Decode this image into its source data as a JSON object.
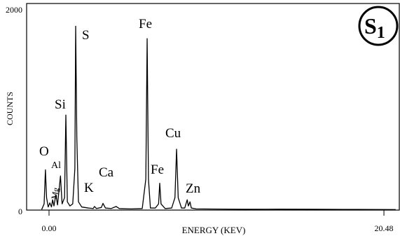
{
  "chart_data": {
    "type": "line",
    "xlabel": "ENERGY (KEV)",
    "ylabel": "COUNTS",
    "color": "#000000",
    "xlim": [
      -1.37,
      21.42
    ],
    "ylim": [
      0,
      2000
    ],
    "xticks": [
      {
        "value": 0,
        "label": "0.00"
      },
      {
        "value": 20.48,
        "label": "20.48"
      }
    ],
    "yticks": [
      0,
      2000
    ],
    "x": [
      -0.45,
      -0.3,
      -0.22,
      -0.15,
      -0.05,
      0.05,
      0.15,
      0.22,
      0.3,
      0.42,
      0.52,
      0.7,
      0.8,
      0.95,
      1.03,
      1.12,
      1.28,
      1.45,
      1.58,
      1.63,
      1.7,
      1.8,
      2.0,
      2.4,
      2.7,
      2.78,
      2.9,
      3.2,
      3.3,
      3.45,
      3.8,
      4.1,
      4.3,
      5.0,
      5.7,
      5.92,
      6.0,
      6.08,
      6.2,
      6.5,
      6.7,
      6.77,
      6.85,
      7.1,
      7.5,
      7.7,
      7.8,
      7.9,
      8.1,
      8.3,
      8.45,
      8.52,
      8.62,
      8.7,
      9.0,
      10,
      12,
      14,
      16,
      18,
      20,
      21.2
    ],
    "values": [
      5,
      60,
      390,
      120,
      30,
      70,
      30,
      100,
      40,
      150,
      50,
      330,
      60,
      120,
      920,
      80,
      40,
      60,
      400,
      1780,
      700,
      80,
      30,
      20,
      15,
      35,
      15,
      25,
      65,
      20,
      15,
      35,
      15,
      12,
      15,
      300,
      1660,
      300,
      20,
      20,
      60,
      260,
      60,
      15,
      20,
      120,
      590,
      120,
      20,
      20,
      100,
      40,
      80,
      20,
      12,
      10,
      8,
      9,
      8,
      7,
      6,
      5
    ],
    "annotations": [
      "O",
      "Mg",
      "Al",
      "Si",
      "S",
      "K",
      "Ca",
      "Fe",
      "Fe",
      "Cu",
      "Zn"
    ],
    "badge": {
      "text": "S",
      "subscript": "1"
    }
  }
}
